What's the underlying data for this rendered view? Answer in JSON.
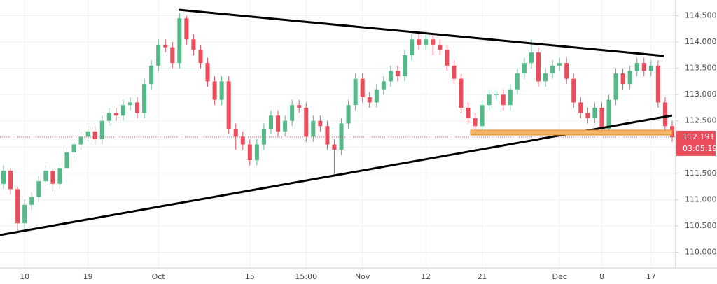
{
  "chart_data": {
    "type": "candlestick",
    "categories": [
      null,
      null,
      null,
      "10",
      null,
      null,
      null,
      null,
      null,
      null,
      null,
      null,
      "19",
      null,
      null,
      null,
      null,
      null,
      null,
      null,
      null,
      null,
      "Oct",
      null,
      null,
      null,
      null,
      null,
      null,
      null,
      null,
      null,
      null,
      null,
      null,
      "15",
      null,
      null,
      null,
      null,
      null,
      null,
      null,
      "15:00",
      null,
      null,
      null,
      null,
      null,
      null,
      null,
      "Nov",
      null,
      null,
      null,
      null,
      null,
      null,
      null,
      null,
      "12",
      null,
      null,
      null,
      null,
      null,
      null,
      null,
      "21",
      null,
      null,
      null,
      null,
      null,
      null,
      null,
      null,
      null,
      null,
      "Dec",
      null,
      null,
      null,
      null,
      null,
      "8",
      null,
      null,
      null,
      null,
      null,
      null,
      "17",
      null,
      null,
      null
    ],
    "open": [
      111.3,
      111.55,
      111.2,
      110.55,
      110.9,
      111.05,
      111.35,
      111.55,
      111.3,
      111.6,
      111.9,
      112.05,
      112.2,
      112.3,
      112.15,
      112.5,
      112.65,
      112.6,
      112.8,
      112.85,
      112.65,
      113.2,
      113.55,
      113.95,
      113.9,
      113.6,
      114.45,
      114.05,
      113.85,
      113.6,
      113.25,
      112.9,
      113.25,
      112.35,
      112.2,
      112.05,
      111.75,
      112.05,
      112.35,
      112.6,
      112.3,
      112.5,
      112.8,
      112.75,
      112.2,
      112.5,
      112.4,
      112.05,
      111.95,
      112.45,
      112.8,
      113.3,
      112.95,
      112.85,
      113.1,
      113.25,
      113.45,
      113.35,
      113.75,
      114.05,
      113.95,
      114.05,
      113.95,
      113.85,
      113.55,
      113.3,
      112.75,
      112.55,
      112.4,
      112.8,
      113.0,
      113.0,
      112.8,
      113.1,
      113.4,
      113.6,
      113.8,
      113.25,
      113.4,
      113.55,
      113.6,
      113.3,
      112.85,
      112.65,
      112.55,
      112.75,
      112.35,
      112.9,
      113.4,
      113.2,
      113.45,
      113.6,
      113.45,
      113.55,
      112.85,
      112.4
    ],
    "high": [
      111.65,
      111.6,
      111.25,
      111.0,
      111.15,
      111.45,
      111.65,
      111.6,
      111.7,
      112.0,
      112.15,
      112.3,
      112.4,
      112.4,
      112.6,
      112.75,
      112.75,
      112.9,
      112.95,
      112.95,
      113.3,
      113.65,
      114.05,
      114.05,
      114.0,
      114.55,
      114.5,
      114.15,
      113.95,
      113.7,
      113.35,
      113.35,
      113.35,
      112.45,
      112.3,
      112.15,
      112.15,
      112.45,
      112.7,
      112.7,
      112.6,
      112.9,
      112.9,
      112.85,
      112.6,
      112.6,
      112.5,
      112.15,
      112.55,
      112.9,
      113.4,
      113.4,
      113.05,
      113.2,
      113.35,
      113.55,
      113.55,
      113.85,
      114.15,
      114.2,
      114.2,
      114.15,
      114.05,
      113.95,
      113.65,
      113.4,
      112.85,
      112.65,
      112.9,
      113.1,
      113.1,
      113.1,
      113.2,
      113.5,
      113.7,
      114.05,
      113.9,
      113.5,
      113.65,
      113.7,
      113.7,
      113.4,
      112.95,
      112.75,
      112.85,
      112.85,
      113.0,
      113.5,
      113.5,
      113.55,
      113.7,
      113.7,
      113.65,
      113.65,
      112.95,
      112.5
    ],
    "low": [
      111.2,
      111.1,
      110.4,
      110.45,
      110.8,
      110.95,
      111.25,
      111.15,
      111.2,
      111.5,
      111.8,
      111.95,
      112.1,
      112.05,
      112.05,
      112.4,
      112.5,
      112.5,
      112.7,
      112.55,
      112.55,
      113.1,
      113.45,
      113.8,
      113.5,
      113.5,
      113.95,
      113.75,
      113.5,
      113.15,
      112.8,
      112.8,
      112.25,
      111.95,
      111.95,
      111.65,
      111.65,
      111.95,
      112.25,
      112.2,
      112.2,
      112.4,
      112.65,
      112.1,
      112.1,
      112.3,
      111.95,
      111.45,
      111.85,
      112.35,
      112.7,
      112.85,
      112.75,
      112.75,
      113.0,
      113.15,
      113.25,
      113.25,
      113.65,
      113.85,
      113.85,
      113.75,
      113.75,
      113.45,
      113.2,
      112.65,
      112.45,
      112.3,
      112.3,
      112.7,
      112.9,
      112.7,
      112.7,
      113.0,
      113.3,
      113.5,
      113.15,
      113.15,
      113.3,
      113.45,
      113.2,
      112.75,
      112.55,
      112.45,
      112.45,
      112.25,
      112.25,
      112.8,
      113.1,
      113.1,
      113.35,
      113.35,
      113.35,
      112.75,
      112.3,
      112.1
    ],
    "close": [
      111.55,
      111.2,
      110.55,
      110.9,
      111.05,
      111.35,
      111.55,
      111.3,
      111.6,
      111.9,
      112.05,
      112.2,
      112.3,
      112.15,
      112.5,
      112.65,
      112.6,
      112.8,
      112.85,
      112.65,
      113.2,
      113.55,
      113.95,
      113.9,
      113.6,
      114.45,
      114.05,
      113.85,
      113.6,
      113.25,
      112.9,
      113.25,
      112.35,
      112.2,
      112.05,
      111.75,
      112.05,
      112.35,
      112.6,
      112.3,
      112.5,
      112.8,
      112.75,
      112.2,
      112.5,
      112.4,
      112.05,
      111.95,
      112.45,
      112.8,
      113.3,
      112.95,
      112.85,
      113.1,
      113.25,
      113.45,
      113.35,
      113.75,
      114.05,
      113.95,
      114.05,
      113.95,
      113.85,
      113.55,
      113.3,
      112.75,
      112.55,
      112.4,
      112.8,
      113.0,
      113.0,
      112.8,
      113.1,
      113.4,
      113.6,
      113.8,
      113.25,
      113.4,
      113.55,
      113.6,
      113.3,
      112.85,
      112.65,
      112.55,
      112.75,
      112.35,
      112.9,
      113.4,
      113.2,
      113.45,
      113.6,
      113.45,
      113.55,
      112.85,
      112.4,
      112.19
    ],
    "up_color": "#53b987",
    "down_color": "#eb4d5c",
    "ylim": [
      109.7,
      114.8
    ],
    "yticks": [
      {
        "value": 110,
        "label": "110.000"
      },
      {
        "value": 110.5,
        "label": "110.500"
      },
      {
        "value": 111,
        "label": "111.000"
      },
      {
        "value": 111.5,
        "label": "111.500"
      },
      {
        "value": 112,
        "label": "112.000"
      },
      {
        "value": 112.5,
        "label": "112.500"
      },
      {
        "value": 113,
        "label": "113.000"
      },
      {
        "value": 113.5,
        "label": "113.500"
      },
      {
        "value": 114,
        "label": "114.000"
      },
      {
        "value": 114.5,
        "label": "114.500"
      }
    ],
    "grid": true,
    "last_price": 112.191,
    "countdown": "03:05:19"
  }
}
